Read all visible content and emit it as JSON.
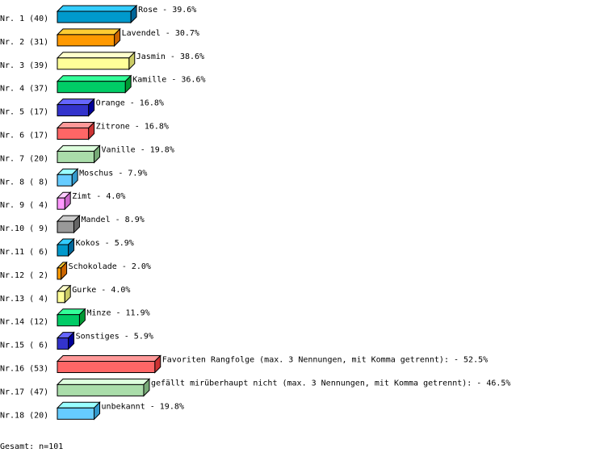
{
  "chart_data": {
    "type": "bar",
    "orientation": "horizontal",
    "style": "3d",
    "grid": false,
    "xlim": [
      0,
      100
    ],
    "row_labels": [
      "Nr. 1 (40)",
      "Nr. 2 (31)",
      "Nr. 3 (39)",
      "Nr. 4 (37)",
      "Nr. 5 (17)",
      "Nr. 6 (17)",
      "Nr. 7 (20)",
      "Nr. 8 ( 8)",
      "Nr. 9 ( 4)",
      "Nr.10 ( 9)",
      "Nr.11 ( 6)",
      "Nr.12 ( 2)",
      "Nr.13 ( 4)",
      "Nr.14 (12)",
      "Nr.15 ( 6)",
      "Nr.16 (53)",
      "Nr.17 (47)",
      "Nr.18 (20)"
    ],
    "counts": [
      40,
      31,
      39,
      37,
      17,
      17,
      20,
      8,
      4,
      9,
      6,
      2,
      4,
      12,
      6,
      53,
      47,
      20
    ],
    "categories": [
      "Rose",
      "Lavendel",
      "Jasmin",
      "Kamille",
      "Orange",
      "Zitrone",
      "Vanille",
      "Moschus",
      "Zimt",
      "Mandel",
      "Kokos",
      "Schokolade",
      "Gurke",
      "Minze",
      "Sonstiges",
      "Favoriten Rangfolge (max. 3 Nennungen, mit Komma getrennt):",
      "gefällt mirüberhaupt nicht (max. 3 Nennungen, mit Komma getrennt):",
      "unbekannt"
    ],
    "values": [
      39.6,
      30.7,
      38.6,
      36.6,
      16.8,
      16.8,
      19.8,
      7.9,
      4.0,
      8.9,
      5.9,
      2.0,
      4.0,
      11.9,
      5.9,
      52.5,
      46.5,
      19.8
    ],
    "value_labels": [
      "39.6%",
      "30.7%",
      "38.6%",
      "36.6%",
      "16.8%",
      "16.8%",
      "19.8%",
      "7.9%",
      "4.0%",
      "8.9%",
      "5.9%",
      "2.0%",
      "4.0%",
      "11.9%",
      "5.9%",
      "52.5%",
      "46.5%",
      "19.8%"
    ],
    "colors": [
      "#0099cc",
      "#ff9900",
      "#ffff99",
      "#00cc66",
      "#3333cc",
      "#ff6666",
      "#aaddaa",
      "#66ccff",
      "#ff99ff",
      "#999999",
      "#0099cc",
      "#ff9900",
      "#ffff99",
      "#00cc66",
      "#3333cc",
      "#ff6666",
      "#aaddaa",
      "#66ccff"
    ],
    "top_colors": [
      "#33ccff",
      "#ffcc33",
      "#ffffcc",
      "#33ff99",
      "#6666ff",
      "#ff9999",
      "#ddffdd",
      "#99ffff",
      "#ffccff",
      "#cccccc",
      "#33ccff",
      "#ffcc33",
      "#ffffcc",
      "#33ff99",
      "#6666ff",
      "#ff9999",
      "#ddffdd",
      "#99ffff"
    ],
    "side_colors": [
      "#006699",
      "#cc6600",
      "#cccc66",
      "#009933",
      "#000099",
      "#cc3333",
      "#77aa77",
      "#3399cc",
      "#cc66cc",
      "#666666",
      "#006699",
      "#cc6600",
      "#cccc66",
      "#009933",
      "#000099",
      "#cc3333",
      "#77aa77",
      "#3399cc"
    ]
  },
  "footer": {
    "total": "Gesamt: n=101"
  }
}
